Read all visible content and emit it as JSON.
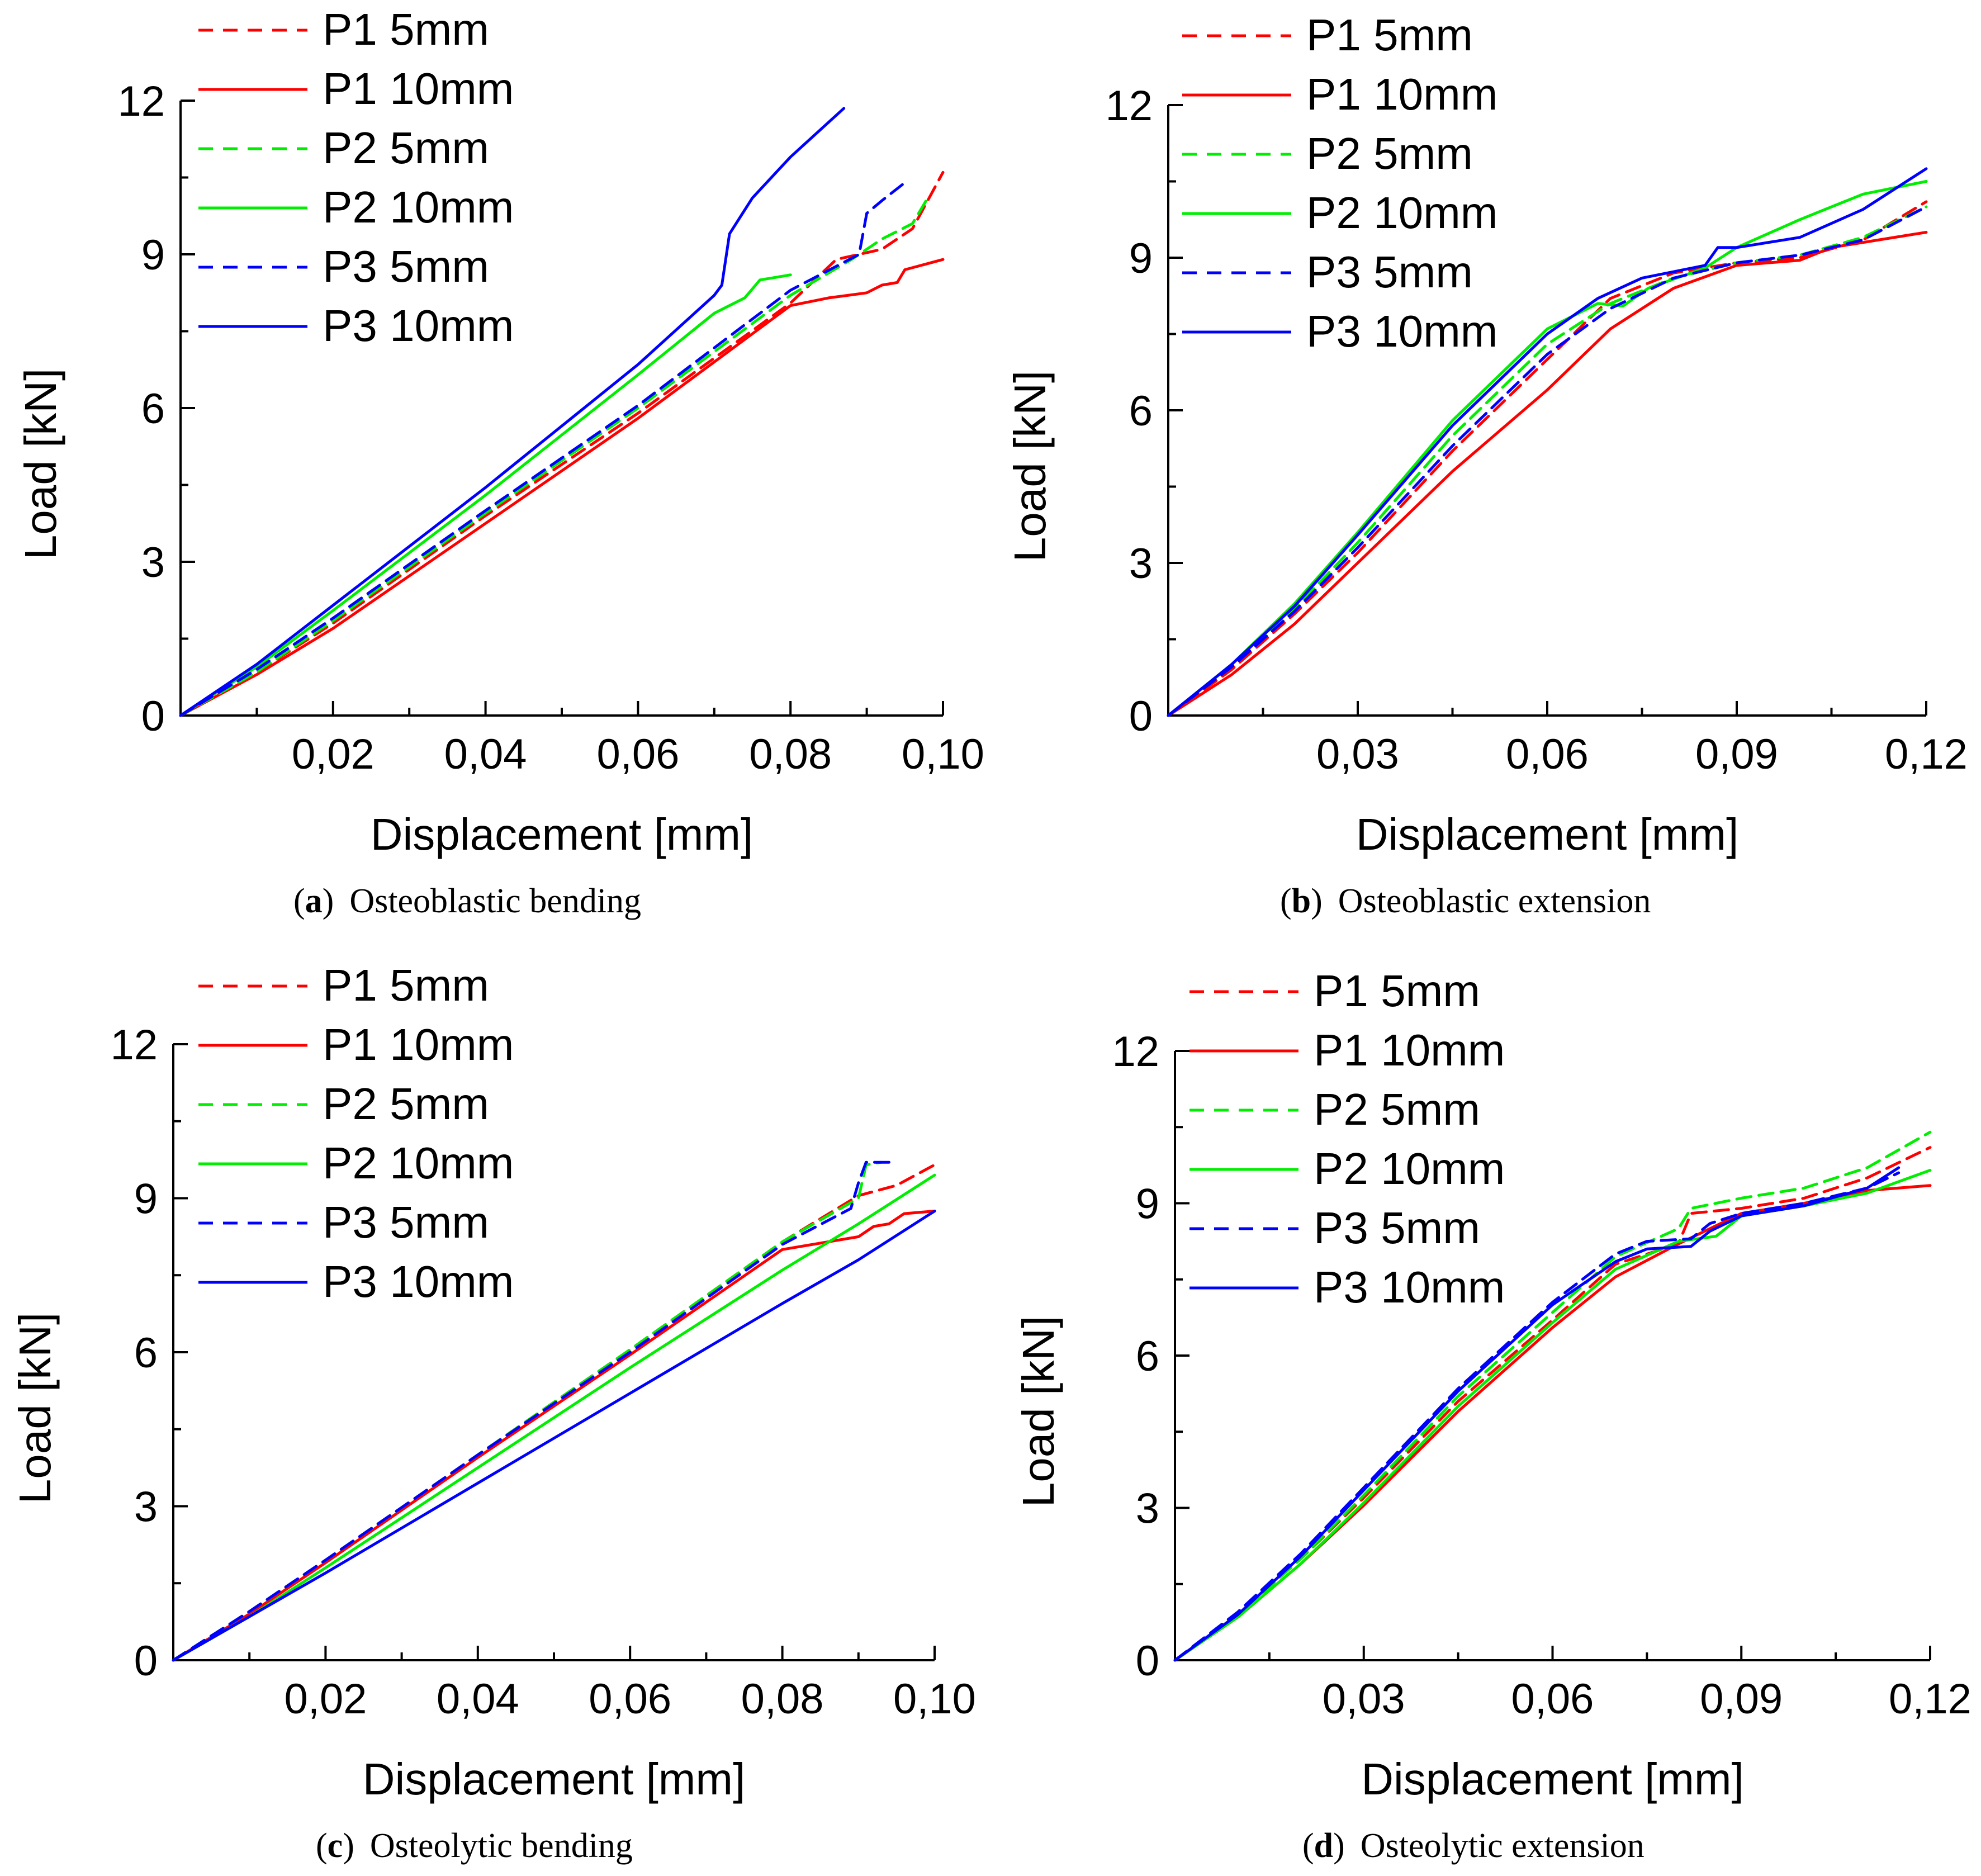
{
  "chart_data": [
    {
      "type": "line",
      "caption_letter": "a",
      "caption_text": "Osteoblastic bending",
      "xlabel": "Displacement [mm]",
      "ylabel": "Load [kN]",
      "xlim": [
        0,
        0.1
      ],
      "ylim": [
        0,
        12
      ],
      "xticks": [
        "0,02",
        "0,04",
        "0,06",
        "0,08",
        "0,10"
      ],
      "yticks": [
        "0",
        "3",
        "6",
        "9",
        "12"
      ],
      "legend": "top-left",
      "series": [
        {
          "name": "P1 5mm",
          "color": "#ff0000",
          "dash": true,
          "x": [
            0,
            0.01,
            0.02,
            0.04,
            0.06,
            0.08,
            0.086,
            0.092,
            0.096,
            0.1
          ],
          "y": [
            0,
            0.85,
            1.8,
            3.9,
            5.9,
            8.05,
            8.9,
            9.1,
            9.5,
            10.6
          ]
        },
        {
          "name": "P1 10mm",
          "color": "#ff0000",
          "dash": false,
          "x": [
            0,
            0.01,
            0.02,
            0.04,
            0.06,
            0.08,
            0.085,
            0.09,
            0.092,
            0.094,
            0.095,
            0.1
          ],
          "y": [
            0,
            0.8,
            1.7,
            3.75,
            5.8,
            8.0,
            8.15,
            8.25,
            8.4,
            8.45,
            8.7,
            8.9
          ]
        },
        {
          "name": "P2 5mm",
          "color": "#00ee00",
          "dash": true,
          "x": [
            0,
            0.01,
            0.02,
            0.04,
            0.06,
            0.08,
            0.088,
            0.092,
            0.096,
            0.098
          ],
          "y": [
            0,
            0.85,
            1.85,
            3.95,
            6.0,
            8.2,
            8.9,
            9.3,
            9.6,
            10.1
          ]
        },
        {
          "name": "P2 10mm",
          "color": "#00ee00",
          "dash": false,
          "x": [
            0,
            0.01,
            0.02,
            0.04,
            0.06,
            0.07,
            0.074,
            0.076,
            0.078,
            0.08
          ],
          "y": [
            0,
            0.95,
            2.05,
            4.3,
            6.65,
            7.85,
            8.15,
            8.5,
            8.55,
            8.6
          ]
        },
        {
          "name": "P3 5mm",
          "color": "#0000ff",
          "dash": true,
          "x": [
            0,
            0.01,
            0.02,
            0.04,
            0.06,
            0.08,
            0.089,
            0.09,
            0.092,
            0.095
          ],
          "y": [
            0,
            0.9,
            1.9,
            4.0,
            6.05,
            8.3,
            9.0,
            9.8,
            10.05,
            10.4
          ]
        },
        {
          "name": "P3 10mm",
          "color": "#0000ff",
          "dash": false,
          "x": [
            0,
            0.01,
            0.02,
            0.04,
            0.06,
            0.07,
            0.071,
            0.072,
            0.075,
            0.08,
            0.087
          ],
          "y": [
            0,
            1.0,
            2.15,
            4.45,
            6.85,
            8.2,
            8.4,
            9.4,
            10.1,
            10.9,
            11.85
          ]
        }
      ]
    },
    {
      "type": "line",
      "caption_letter": "b",
      "caption_text": "Osteoblastic extension",
      "xlabel": "Displacement [mm]",
      "ylabel": "Load [kN]",
      "xlim": [
        0,
        0.12
      ],
      "ylim": [
        0,
        12
      ],
      "xticks": [
        "0,03",
        "0,06",
        "0,09",
        "0,12"
      ],
      "yticks": [
        "0",
        "3",
        "6",
        "9",
        "12"
      ],
      "legend": "top-left",
      "series": [
        {
          "name": "P1 5mm",
          "color": "#ff0000",
          "dash": true,
          "x": [
            0,
            0.01,
            0.02,
            0.03,
            0.045,
            0.06,
            0.07,
            0.08,
            0.09,
            0.1,
            0.11,
            0.12
          ],
          "y": [
            0,
            0.9,
            2.0,
            3.2,
            5.2,
            7.0,
            8.2,
            8.7,
            8.9,
            9.0,
            9.35,
            10.1
          ]
        },
        {
          "name": "P1 10mm",
          "color": "#ff0000",
          "dash": false,
          "x": [
            0,
            0.01,
            0.02,
            0.03,
            0.045,
            0.06,
            0.07,
            0.08,
            0.09,
            0.1,
            0.105,
            0.12
          ],
          "y": [
            0,
            0.8,
            1.8,
            3.0,
            4.8,
            6.4,
            7.6,
            8.4,
            8.85,
            8.95,
            9.2,
            9.5
          ]
        },
        {
          "name": "P2 5mm",
          "color": "#00ee00",
          "dash": true,
          "x": [
            0,
            0.01,
            0.02,
            0.03,
            0.045,
            0.06,
            0.07,
            0.08,
            0.09,
            0.1,
            0.11,
            0.12
          ],
          "y": [
            0,
            0.95,
            2.1,
            3.4,
            5.5,
            7.3,
            8.1,
            8.6,
            8.9,
            9.05,
            9.4,
            10.0
          ]
        },
        {
          "name": "P2 10mm",
          "color": "#00ee00",
          "dash": false,
          "x": [
            0,
            0.01,
            0.02,
            0.03,
            0.045,
            0.06,
            0.068,
            0.072,
            0.076,
            0.085,
            0.09,
            0.1,
            0.11,
            0.12
          ],
          "y": [
            0,
            1.0,
            2.2,
            3.6,
            5.8,
            7.6,
            8.1,
            8.05,
            8.4,
            8.8,
            9.2,
            9.75,
            10.25,
            10.5
          ]
        },
        {
          "name": "P3 5mm",
          "color": "#0000ff",
          "dash": true,
          "x": [
            0,
            0.01,
            0.02,
            0.03,
            0.045,
            0.06,
            0.07,
            0.08,
            0.09,
            0.1,
            0.11,
            0.12
          ],
          "y": [
            0,
            0.95,
            2.05,
            3.3,
            5.3,
            7.1,
            8.0,
            8.6,
            8.9,
            9.05,
            9.35,
            10.0
          ]
        },
        {
          "name": "P3 10mm",
          "color": "#0000ff",
          "dash": false,
          "x": [
            0,
            0.01,
            0.02,
            0.03,
            0.045,
            0.06,
            0.068,
            0.075,
            0.085,
            0.087,
            0.09,
            0.1,
            0.11,
            0.12
          ],
          "y": [
            0,
            1.0,
            2.15,
            3.55,
            5.7,
            7.5,
            8.2,
            8.6,
            8.85,
            9.2,
            9.2,
            9.4,
            9.95,
            10.75
          ]
        }
      ]
    },
    {
      "type": "line",
      "caption_letter": "c",
      "caption_text": "Osteolytic bending",
      "xlabel": "Displacement [mm]",
      "ylabel": "Load [kN]",
      "xlim": [
        0,
        0.1
      ],
      "ylim": [
        0,
        12
      ],
      "xticks": [
        "0,02",
        "0,04",
        "0,06",
        "0,08",
        "0,10"
      ],
      "yticks": [
        "0",
        "3",
        "6",
        "9",
        "12"
      ],
      "legend": "top-left",
      "series": [
        {
          "name": "P1 5mm",
          "color": "#ff0000",
          "dash": true,
          "x": [
            0,
            0.01,
            0.02,
            0.04,
            0.06,
            0.08,
            0.09,
            0.095,
            0.1
          ],
          "y": [
            0,
            0.95,
            1.95,
            4.0,
            6.05,
            8.15,
            9.05,
            9.25,
            9.65
          ]
        },
        {
          "name": "P1 10mm",
          "color": "#ff0000",
          "dash": false,
          "x": [
            0,
            0.01,
            0.02,
            0.04,
            0.06,
            0.08,
            0.09,
            0.092,
            0.094,
            0.096,
            0.1
          ],
          "y": [
            0,
            0.9,
            1.9,
            3.95,
            5.95,
            8.0,
            8.25,
            8.45,
            8.5,
            8.7,
            8.75
          ]
        },
        {
          "name": "P2 5mm",
          "color": "#00ee00",
          "dash": true,
          "x": [
            0,
            0.01,
            0.02,
            0.04,
            0.06,
            0.08,
            0.09,
            0.091,
            0.093
          ],
          "y": [
            0,
            0.95,
            1.95,
            4.0,
            6.05,
            8.15,
            9.0,
            9.65,
            9.7
          ]
        },
        {
          "name": "P2 10mm",
          "color": "#00ee00",
          "dash": false,
          "x": [
            0,
            0.01,
            0.02,
            0.04,
            0.06,
            0.08,
            0.09,
            0.1
          ],
          "y": [
            0,
            0.85,
            1.8,
            3.75,
            5.7,
            7.6,
            8.5,
            9.45
          ]
        },
        {
          "name": "P3 5mm",
          "color": "#0000ff",
          "dash": true,
          "x": [
            0,
            0.01,
            0.02,
            0.04,
            0.06,
            0.08,
            0.089,
            0.09,
            0.091,
            0.095
          ],
          "y": [
            0,
            0.95,
            1.95,
            4.0,
            6.0,
            8.1,
            8.8,
            9.3,
            9.7,
            9.7
          ]
        },
        {
          "name": "P3 10mm",
          "color": "#0000ff",
          "dash": false,
          "x": [
            0,
            0.01,
            0.02,
            0.04,
            0.06,
            0.08,
            0.09,
            0.1
          ],
          "y": [
            0,
            0.85,
            1.7,
            3.45,
            5.2,
            6.95,
            7.8,
            8.75
          ]
        }
      ]
    },
    {
      "type": "line",
      "caption_letter": "d",
      "caption_text": "Osteolytic extension",
      "xlabel": "Displacement [mm]",
      "ylabel": "Load [kN]",
      "xlim": [
        0,
        0.12
      ],
      "ylim": [
        0,
        12
      ],
      "xticks": [
        "0,03",
        "0,06",
        "0,09",
        "0,12"
      ],
      "yticks": [
        "0",
        "3",
        "6",
        "9",
        "12"
      ],
      "legend": "top-left",
      "series": [
        {
          "name": "P1 5mm",
          "color": "#ff0000",
          "dash": true,
          "x": [
            0,
            0.01,
            0.02,
            0.03,
            0.045,
            0.06,
            0.07,
            0.08,
            0.082,
            0.09,
            0.1,
            0.11,
            0.12
          ],
          "y": [
            0,
            0.9,
            2.0,
            3.2,
            5.1,
            6.7,
            7.8,
            8.2,
            8.8,
            8.9,
            9.1,
            9.5,
            10.1
          ]
        },
        {
          "name": "P1 10mm",
          "color": "#ff0000",
          "dash": false,
          "x": [
            0,
            0.01,
            0.02,
            0.03,
            0.045,
            0.06,
            0.07,
            0.08,
            0.09,
            0.1,
            0.11,
            0.12
          ],
          "y": [
            0,
            0.85,
            1.9,
            3.05,
            4.9,
            6.55,
            7.55,
            8.2,
            8.8,
            9.0,
            9.25,
            9.35
          ]
        },
        {
          "name": "P2 5mm",
          "color": "#00ee00",
          "dash": true,
          "x": [
            0,
            0.01,
            0.02,
            0.03,
            0.045,
            0.06,
            0.07,
            0.08,
            0.082,
            0.09,
            0.1,
            0.11,
            0.12
          ],
          "y": [
            0,
            0.9,
            2.0,
            3.25,
            5.2,
            6.85,
            7.95,
            8.5,
            8.9,
            9.1,
            9.3,
            9.7,
            10.4
          ]
        },
        {
          "name": "P2 10mm",
          "color": "#00ee00",
          "dash": false,
          "x": [
            0,
            0.01,
            0.02,
            0.03,
            0.045,
            0.06,
            0.07,
            0.08,
            0.086,
            0.09,
            0.1,
            0.11,
            0.12
          ],
          "y": [
            0,
            0.85,
            1.9,
            3.1,
            5.0,
            6.65,
            7.7,
            8.25,
            8.35,
            8.75,
            8.95,
            9.2,
            9.65
          ]
        },
        {
          "name": "P3 5mm",
          "color": "#0000ff",
          "dash": true,
          "x": [
            0,
            0.01,
            0.02,
            0.03,
            0.045,
            0.06,
            0.07,
            0.075,
            0.082,
            0.085,
            0.09,
            0.1,
            0.11,
            0.115
          ],
          "y": [
            0,
            0.95,
            2.1,
            3.4,
            5.35,
            7.05,
            8.0,
            8.25,
            8.3,
            8.6,
            8.8,
            9.0,
            9.3,
            9.6
          ]
        },
        {
          "name": "P3 10mm",
          "color": "#0000ff",
          "dash": false,
          "x": [
            0,
            0.01,
            0.02,
            0.03,
            0.045,
            0.06,
            0.07,
            0.075,
            0.082,
            0.085,
            0.09,
            0.1,
            0.11,
            0.115
          ],
          "y": [
            0,
            0.9,
            2.05,
            3.35,
            5.3,
            7.0,
            7.85,
            8.1,
            8.15,
            8.45,
            8.75,
            8.95,
            9.3,
            9.7
          ]
        }
      ]
    }
  ]
}
